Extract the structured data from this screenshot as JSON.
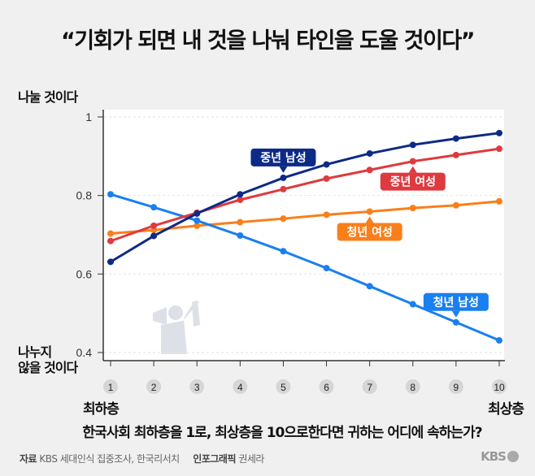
{
  "title": "“기회가 되면 내 것을 나눠 타인을 도울 것이다”",
  "y_top_label": "나눌 것이다",
  "y_bottom_label": [
    "나누지",
    "않을 것이다"
  ],
  "x_left_label": "최하층",
  "x_right_label": "최상층",
  "question": "한국사회 최하층을 1로, 최상층을 10으로한다면 귀하는 어디에 속하는가?",
  "footer": {
    "source_key": "자료",
    "source": "KBS 세대인식 집중조사, 한국리서치",
    "graphic_key": "인포그래픽",
    "graphic": "권세라"
  },
  "logo": "KBS",
  "chart_data": {
    "type": "line",
    "x": [
      1,
      2,
      3,
      4,
      5,
      6,
      7,
      8,
      9,
      10
    ],
    "xlim": [
      1,
      10
    ],
    "ylim": [
      0.4,
      1
    ],
    "yticks": [
      1,
      0.8,
      0.6,
      0.4
    ],
    "ytick_labels": [
      "1",
      "0.8",
      "0.6",
      "0.4"
    ],
    "xtick_labels": [
      "1",
      "2",
      "3",
      "4",
      "5",
      "6",
      "7",
      "8",
      "9",
      "10"
    ],
    "grid": "horizontal dashed",
    "series": [
      {
        "name": "청년 여성",
        "color": "#f97f1a",
        "values": [
          0.703,
          0.712,
          0.723,
          0.732,
          0.741,
          0.751,
          0.759,
          0.768,
          0.775,
          0.785
        ],
        "label_at": 7,
        "label_side": "below"
      },
      {
        "name": "청년 남성",
        "color": "#1a7ff0",
        "values": [
          0.803,
          0.77,
          0.736,
          0.698,
          0.658,
          0.615,
          0.569,
          0.523,
          0.477,
          0.431
        ],
        "label_at": 9,
        "label_side": "above"
      },
      {
        "name": "중년 여성",
        "color": "#de3a3f",
        "values": [
          0.684,
          0.723,
          0.756,
          0.789,
          0.816,
          0.843,
          0.865,
          0.887,
          0.903,
          0.919
        ],
        "label_at": 8,
        "label_side": "below"
      },
      {
        "name": "중년 남성",
        "color": "#0d2a86",
        "values": [
          0.631,
          0.697,
          0.754,
          0.803,
          0.845,
          0.879,
          0.907,
          0.929,
          0.945,
          0.959
        ],
        "label_at": 5,
        "label_side": "above"
      }
    ]
  }
}
